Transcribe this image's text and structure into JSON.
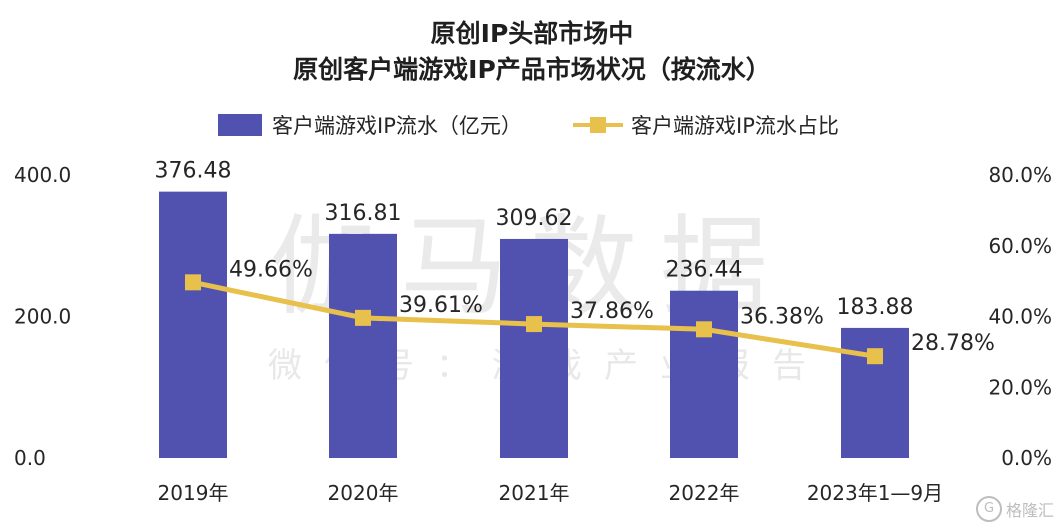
{
  "chart_data": {
    "type": "bar",
    "title": "原创IP头部市场中",
    "subtitle": "原创客户端游戏IP产品市场状况（按流水）",
    "categories": [
      "2019年",
      "2020年",
      "2021年",
      "2022年",
      "2023年1—9月"
    ],
    "series": [
      {
        "name": "客户端游戏IP流水（亿元）",
        "type": "bar",
        "axis": "left",
        "values": [
          376.48,
          316.81,
          309.62,
          236.44,
          183.88
        ],
        "labels": [
          "376.48",
          "316.81",
          "309.62",
          "236.44",
          "183.88"
        ],
        "color": "#5152b0"
      },
      {
        "name": "客户端游戏IP流水占比",
        "type": "line",
        "axis": "right",
        "values": [
          49.66,
          39.61,
          37.86,
          36.38,
          28.78
        ],
        "labels": [
          "49.66%",
          "39.61%",
          "37.86%",
          "36.38%",
          "28.78%"
        ],
        "color": "#e8c04c"
      }
    ],
    "y_left": {
      "ylim": [
        0,
        400
      ],
      "ticks": [
        "0.0",
        "200.0",
        "400.0"
      ]
    },
    "y_right": {
      "ylim": [
        0,
        80
      ],
      "ticks": [
        "0.0%",
        "20.0%",
        "40.0%",
        "60.0%",
        "80.0%"
      ]
    },
    "legend": "top",
    "grid": false
  },
  "watermark": {
    "main": "伽马数据",
    "sub": "微信号：游戏产业报告"
  },
  "corner_logo": {
    "icon": "G",
    "text": "格隆汇"
  }
}
